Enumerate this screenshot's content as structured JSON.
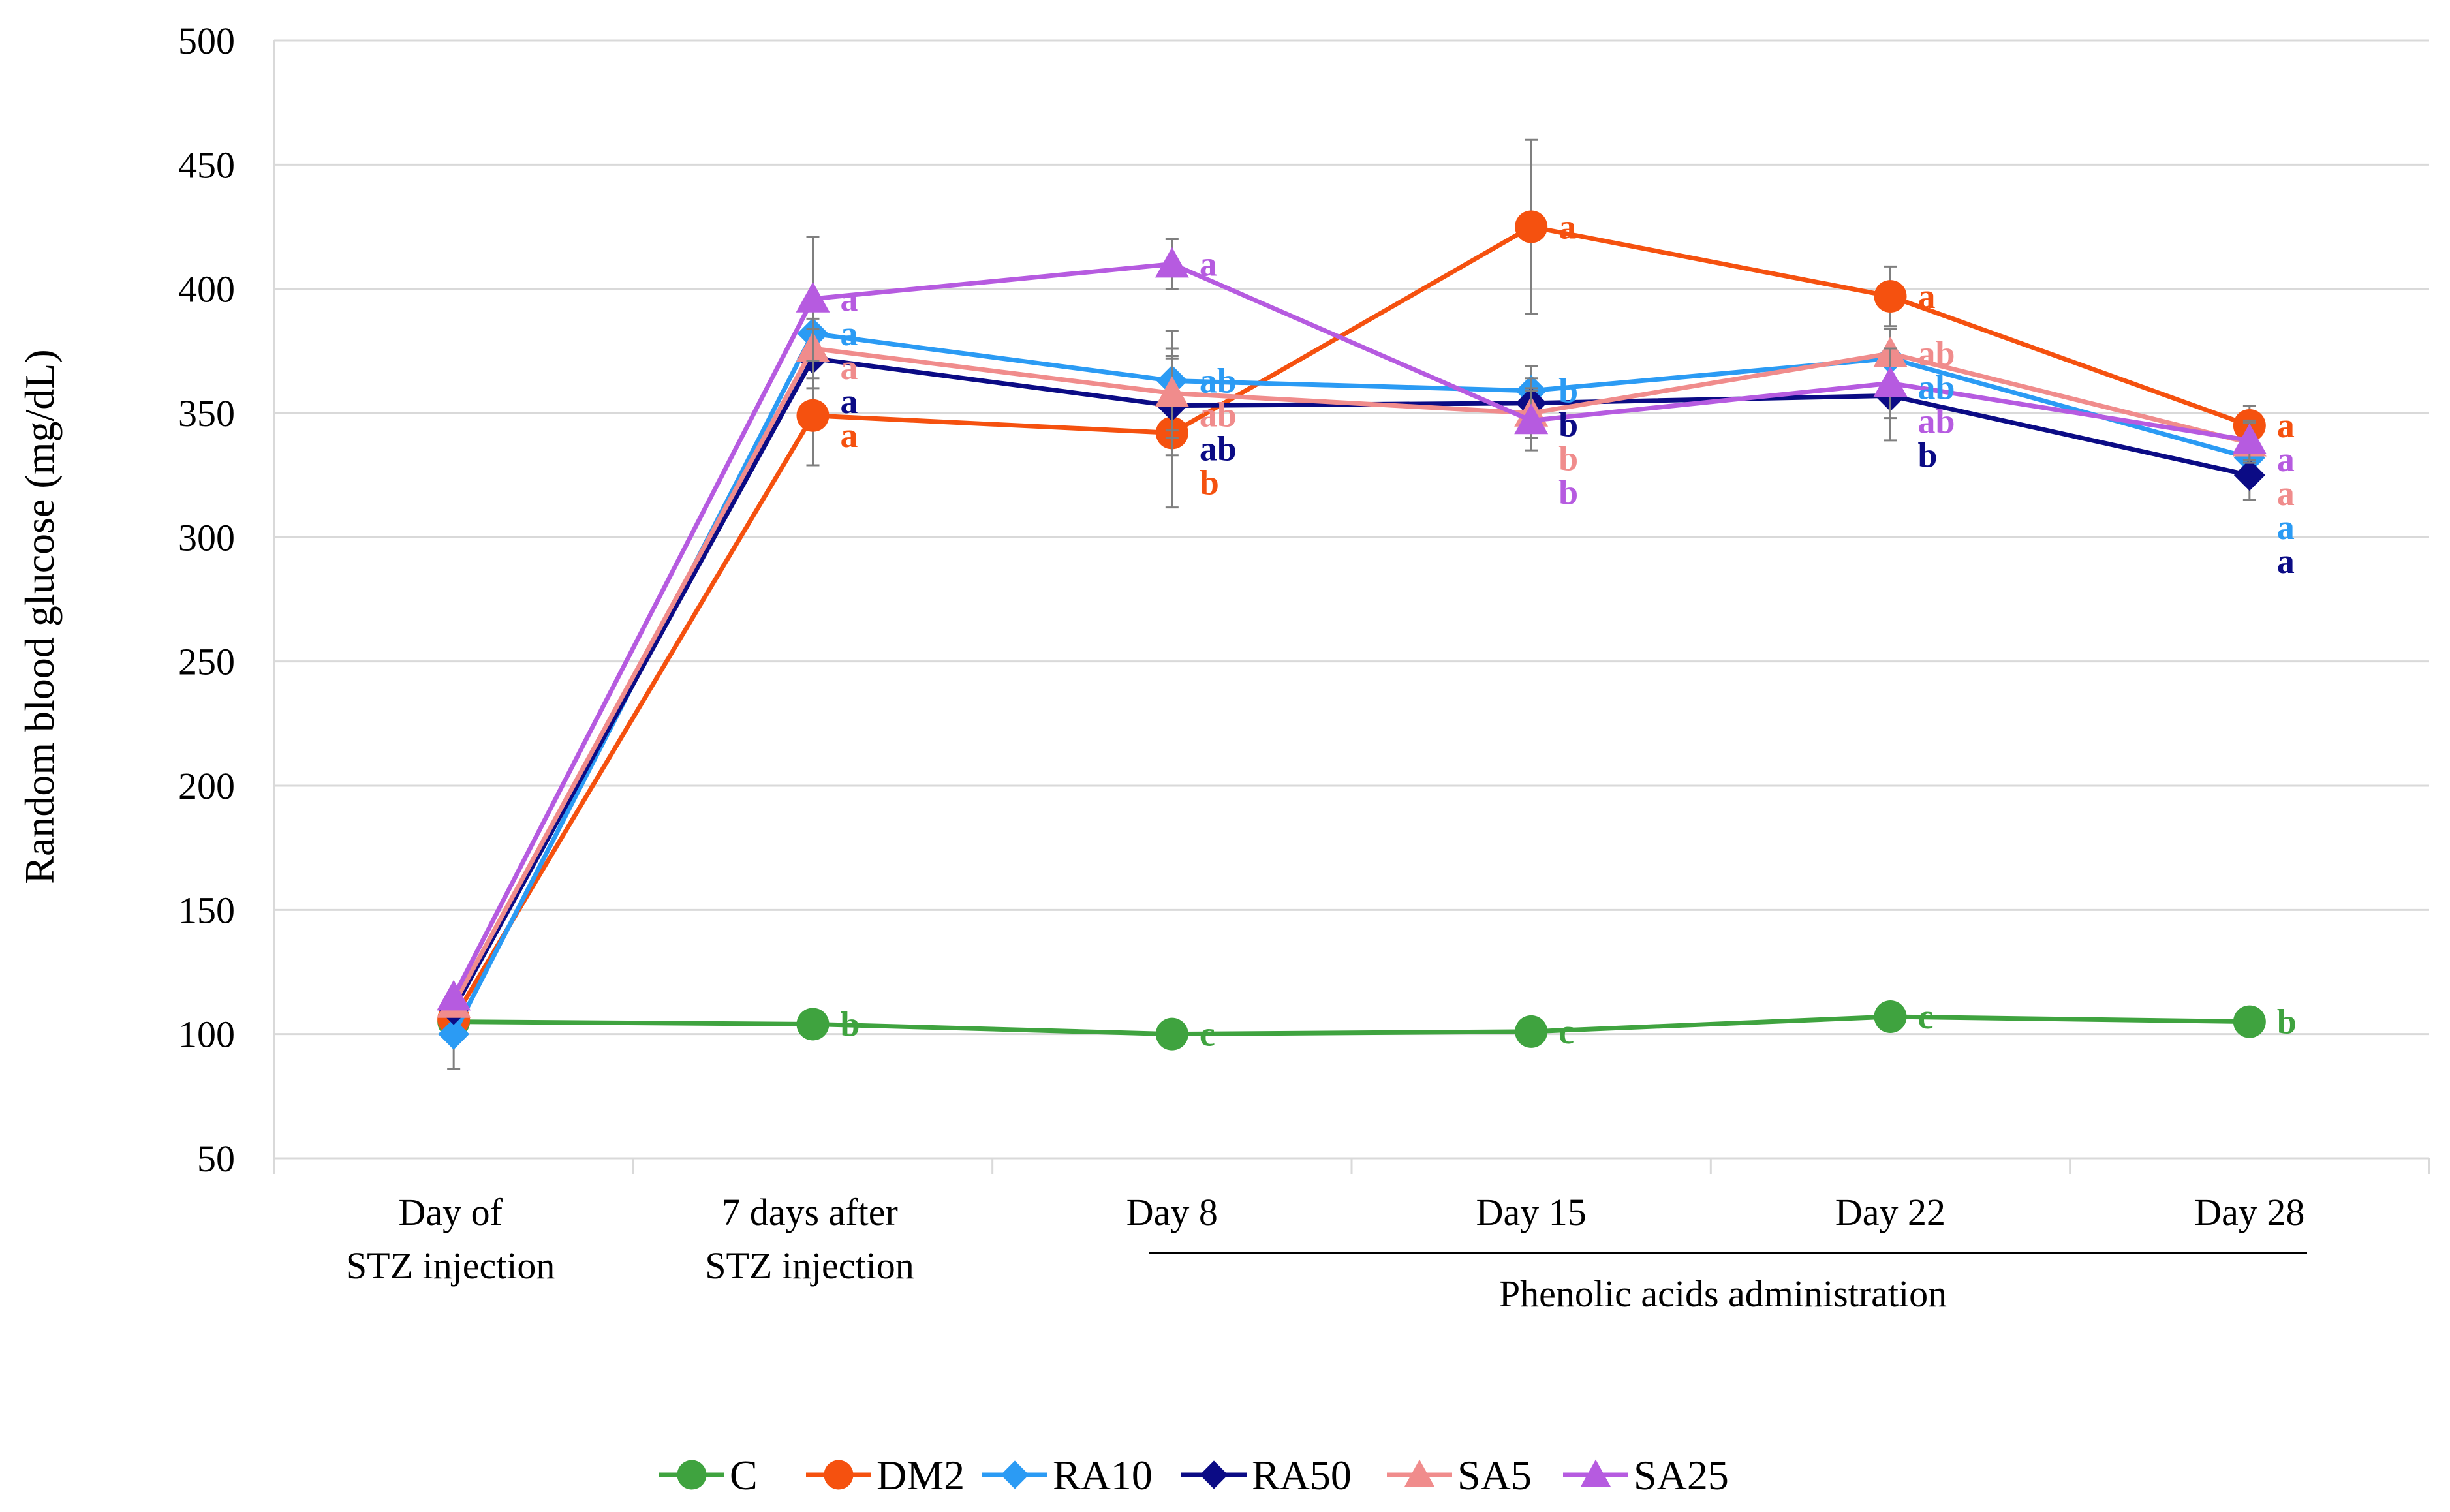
{
  "chart_data": {
    "type": "line",
    "ylabel": "Random blood glucose (mg/dL)",
    "ylim": [
      50,
      500
    ],
    "ytick_step": 50,
    "grid": true,
    "legend_position": "bottom",
    "categories": [
      {
        "lines": [
          "Day of",
          "STZ injection"
        ]
      },
      {
        "lines": [
          "7 days after",
          "STZ injection"
        ]
      },
      {
        "lines": [
          "Day 8"
        ]
      },
      {
        "lines": [
          "Day 15"
        ]
      },
      {
        "lines": [
          "Day 22"
        ]
      },
      {
        "lines": [
          "Day 28"
        ]
      }
    ],
    "bracket_label": "Phenolic acids administration",
    "series": [
      {
        "name": "C",
        "color": "#3fa33f",
        "marker": "circle",
        "values": [
          105,
          104,
          100,
          101,
          107,
          105
        ],
        "errors": [
          0,
          0,
          0,
          0,
          0,
          0
        ],
        "labels": [
          "",
          "b",
          "c",
          "c",
          "c",
          "b"
        ]
      },
      {
        "name": "DM2",
        "color": "#f5510f",
        "marker": "circle",
        "values": [
          106,
          349,
          342,
          425,
          397,
          345
        ],
        "errors": [
          0,
          20,
          30,
          35,
          12,
          8
        ],
        "labels": [
          "",
          "a",
          "b",
          "a",
          "a",
          "a"
        ]
      },
      {
        "name": "RA10",
        "color": "#2b9bf4",
        "marker": "diamond",
        "values": [
          100,
          382,
          363,
          359,
          372,
          332
        ],
        "errors": [
          14,
          12,
          20,
          10,
          12,
          8
        ],
        "labels": [
          "",
          "a",
          "ab",
          "b",
          "ab",
          "a"
        ]
      },
      {
        "name": "RA50",
        "color": "#0b0b85",
        "marker": "diamond",
        "values": [
          110,
          372,
          353,
          354,
          357,
          325
        ],
        "errors": [
          0,
          12,
          20,
          10,
          18,
          10
        ],
        "labels": [
          "",
          "a",
          "ab",
          "b",
          "b",
          "a"
        ]
      },
      {
        "name": "SA5",
        "color": "#f08c8c",
        "marker": "triangle",
        "values": [
          112,
          376,
          358,
          350,
          374,
          338
        ],
        "errors": [
          0,
          12,
          18,
          10,
          10,
          8
        ],
        "labels": [
          "",
          "a",
          "ab",
          "b",
          "ab",
          "a"
        ]
      },
      {
        "name": "SA25",
        "color": "#b65be0",
        "marker": "triangle",
        "values": [
          115,
          396,
          410,
          347,
          362,
          339
        ],
        "errors": [
          0,
          25,
          10,
          12,
          14,
          8
        ],
        "labels": [
          "",
          "a",
          "a",
          "b",
          "ab",
          "a"
        ]
      }
    ]
  }
}
